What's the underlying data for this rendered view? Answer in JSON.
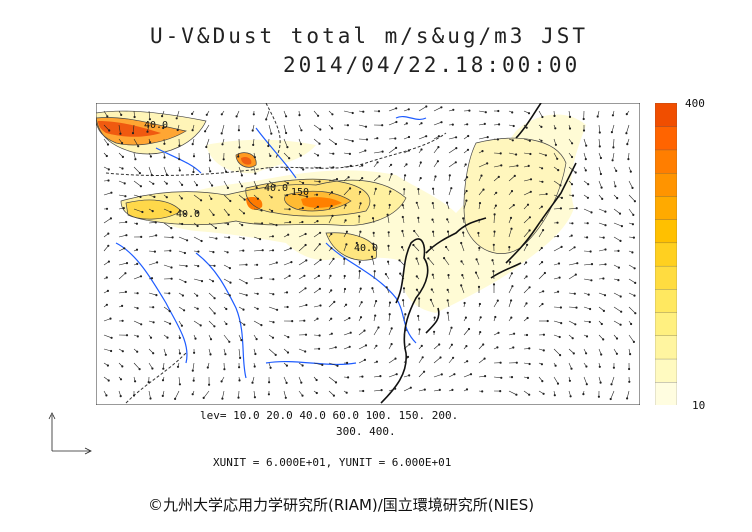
{
  "title": {
    "line1": "U-V&Dust total m/s&ug/m3 JST",
    "line2": "2014/04/22.18:00:00"
  },
  "map_labels": [
    "40.0",
    "150",
    "40.0",
    "40.0",
    "40.0"
  ],
  "colorbar": {
    "max_label": "400",
    "min_label": "10",
    "colors": [
      "#fffde0",
      "#fffac0",
      "#fff5a0",
      "#fff080",
      "#ffe860",
      "#ffdc40",
      "#ffd020",
      "#ffc000",
      "#ffaa00",
      "#ff9400",
      "#ff7e00",
      "#ff6400",
      "#f04e00"
    ]
  },
  "levels": {
    "line1": "lev= 10.0 20.0 40.0 60.0 100. 150. 200.",
    "line2": "300. 400."
  },
  "units_line": "XUNIT = 6.000E+01, YUNIT = 6.000E+01",
  "copyright": "©九州大学応用力学研究所(RIAM)/国立環境研究所(NIES)",
  "colors": {
    "coast": "#111111",
    "river": "#1e5cff",
    "border": "#333333",
    "vector": "#222222"
  }
}
